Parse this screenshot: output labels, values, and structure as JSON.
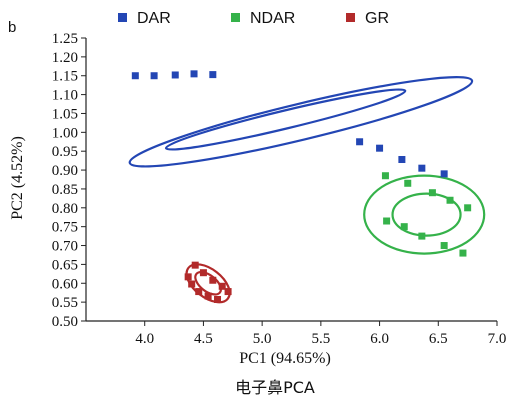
{
  "panel_letter": "b",
  "caption": "电子鼻PCA",
  "chart_data": {
    "type": "scatter",
    "xlabel": "PC1 (94.65%)",
    "ylabel": "PC2 (4.52%)",
    "xlim": [
      3.5,
      7.0
    ],
    "ylim": [
      0.5,
      1.25
    ],
    "x_ticks": [
      "4.0",
      "4.5",
      "5.0",
      "5.5",
      "6.0",
      "6.5",
      "7.0"
    ],
    "y_ticks": [
      "0.50",
      "0.55",
      "0.60",
      "0.65",
      "0.70",
      "0.75",
      "0.80",
      "0.85",
      "0.90",
      "0.95",
      "1.00",
      "1.05",
      "1.10",
      "1.15",
      "1.20",
      "1.25"
    ],
    "grid": false,
    "legend_position": "top",
    "series": [
      {
        "name": "DAR",
        "color": "#2346b4",
        "points": [
          [
            3.92,
            1.15
          ],
          [
            4.08,
            1.15
          ],
          [
            4.26,
            1.152
          ],
          [
            4.42,
            1.155
          ],
          [
            4.58,
            1.153
          ],
          [
            5.83,
            0.975
          ],
          [
            6.0,
            0.958
          ],
          [
            6.19,
            0.928
          ],
          [
            6.36,
            0.905
          ],
          [
            6.55,
            0.89
          ]
        ],
        "ellipses": [
          {
            "cx": 5.33,
            "cy": 1.028,
            "rx_deg": 1.48,
            "ry_deg": 0.028
          },
          {
            "cx": 5.2,
            "cy": 1.034,
            "rx_deg": 1.05,
            "ry_deg": 0.013
          }
        ]
      },
      {
        "name": "NDAR",
        "color": "#35b24a",
        "points": [
          [
            6.05,
            0.885
          ],
          [
            6.24,
            0.865
          ],
          [
            6.45,
            0.84
          ],
          [
            6.6,
            0.82
          ],
          [
            6.75,
            0.8
          ],
          [
            6.06,
            0.765
          ],
          [
            6.21,
            0.75
          ],
          [
            6.36,
            0.725
          ],
          [
            6.55,
            0.7
          ],
          [
            6.71,
            0.68
          ]
        ],
        "ellipses": [
          {
            "cx": 6.38,
            "cy": 0.782,
            "rx_deg": 0.45,
            "ry_deg": 0.1
          },
          {
            "cx": 6.4,
            "cy": 0.782,
            "rx_deg": 0.25,
            "ry_deg": 0.055
          }
        ]
      },
      {
        "name": "GR",
        "color": "#b22a2a",
        "points": [
          [
            4.37,
            0.617
          ],
          [
            4.43,
            0.648
          ],
          [
            4.5,
            0.628
          ],
          [
            4.58,
            0.608
          ],
          [
            4.66,
            0.592
          ],
          [
            4.4,
            0.598
          ],
          [
            4.46,
            0.578
          ],
          [
            4.54,
            0.566
          ],
          [
            4.62,
            0.557
          ],
          [
            4.71,
            0.578
          ]
        ],
        "ellipses": [
          {
            "cx": 4.54,
            "cy": 0.6,
            "rx_deg": 0.16,
            "ry_deg": 0.045
          },
          {
            "cx": 4.54,
            "cy": 0.6,
            "rx_deg": 0.1,
            "ry_deg": 0.025
          }
        ]
      }
    ]
  }
}
